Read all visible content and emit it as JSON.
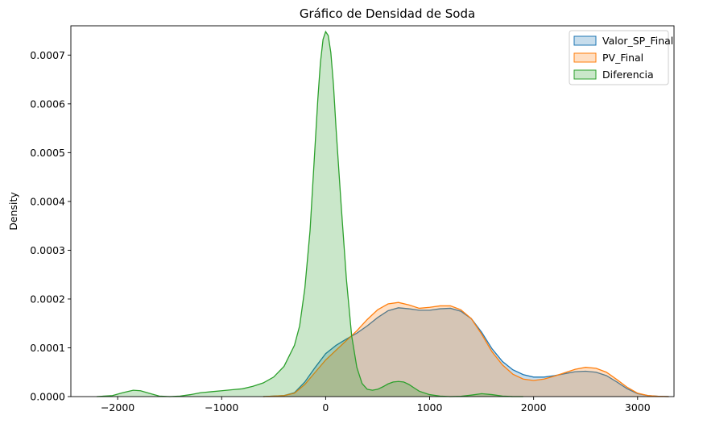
{
  "chart_data": {
    "type": "area",
    "title": "Gráfico de Densidad de Soda",
    "xlabel": "",
    "ylabel": "Density",
    "xlim": [
      -2450,
      3350
    ],
    "ylim": [
      0,
      0.00076
    ],
    "grid": false,
    "legend_position": "top-right",
    "xticks": [
      -2000,
      -1000,
      0,
      1000,
      2000,
      3000
    ],
    "xtick_labels": [
      "−2000",
      "−1000",
      "0",
      "1000",
      "2000",
      "3000"
    ],
    "yticks": [
      0,
      0.0001,
      0.0002,
      0.0003,
      0.0004,
      0.0005,
      0.0006,
      0.0007
    ],
    "ytick_labels": [
      "0.0000",
      "0.0001",
      "0.0002",
      "0.0003",
      "0.0004",
      "0.0005",
      "0.0006",
      "0.0007"
    ],
    "series": [
      {
        "name": "Valor_SP_Final",
        "color": "#1f77b4",
        "x": [
          -600,
          -400,
          -300,
          -200,
          -100,
          0,
          100,
          200,
          300,
          400,
          500,
          600,
          700,
          800,
          900,
          1000,
          1100,
          1200,
          1300,
          1400,
          1500,
          1600,
          1700,
          1800,
          1900,
          2000,
          2100,
          2200,
          2300,
          2400,
          2500,
          2600,
          2700,
          2800,
          2900,
          3000,
          3100,
          3200,
          3300
        ],
        "y": [
          0,
          2e-06,
          8e-06,
          3e-05,
          6e-05,
          8.8e-05,
          0.000105,
          0.000118,
          0.00013,
          0.000145,
          0.000162,
          0.000176,
          0.000182,
          0.00018,
          0.000177,
          0.000177,
          0.00018,
          0.000181,
          0.000175,
          0.00016,
          0.000132,
          9.8e-05,
          7.2e-05,
          5.5e-05,
          4.5e-05,
          4e-05,
          4e-05,
          4.3e-05,
          4.7e-05,
          5.1e-05,
          5.2e-05,
          5e-05,
          4.3e-05,
          3e-05,
          1.6e-05,
          6e-06,
          2e-06,
          5e-07,
          0
        ]
      },
      {
        "name": "PV_Final",
        "color": "#ff7f0e",
        "x": [
          -600,
          -400,
          -300,
          -200,
          -100,
          0,
          100,
          200,
          300,
          400,
          500,
          600,
          700,
          800,
          900,
          1000,
          1100,
          1200,
          1300,
          1400,
          1500,
          1600,
          1700,
          1800,
          1900,
          2000,
          2100,
          2200,
          2300,
          2400,
          2500,
          2600,
          2700,
          2800,
          2900,
          3000,
          3100,
          3200,
          3300
        ],
        "y": [
          0,
          2e-06,
          7e-06,
          2.5e-05,
          5e-05,
          7.5e-05,
          9.5e-05,
          0.000115,
          0.000135,
          0.000158,
          0.000178,
          0.00019,
          0.000193,
          0.000188,
          0.000181,
          0.000183,
          0.000186,
          0.000186,
          0.000178,
          0.00016,
          0.000128,
          9.2e-05,
          6.5e-05,
          4.6e-05,
          3.6e-05,
          3.3e-05,
          3.6e-05,
          4.2e-05,
          4.9e-05,
          5.6e-05,
          6e-05,
          5.8e-05,
          5e-05,
          3.5e-05,
          1.9e-05,
          7e-06,
          2e-06,
          5e-07,
          0
        ]
      },
      {
        "name": "Diferencia",
        "color": "#2ca02c",
        "x": [
          -2200,
          -2050,
          -1950,
          -1850,
          -1780,
          -1700,
          -1600,
          -1500,
          -1400,
          -1300,
          -1200,
          -1100,
          -1000,
          -900,
          -800,
          -700,
          -600,
          -500,
          -400,
          -300,
          -250,
          -200,
          -150,
          -100,
          -75,
          -50,
          -25,
          0,
          25,
          50,
          75,
          100,
          150,
          200,
          250,
          300,
          350,
          400,
          450,
          500,
          550,
          600,
          650,
          700,
          750,
          800,
          850,
          900,
          1000,
          1100,
          1200,
          1300,
          1400,
          1500,
          1600,
          1700,
          1800,
          1900
        ],
        "y": [
          0,
          2e-06,
          8e-06,
          1.3e-05,
          1.2e-05,
          7e-06,
          1e-06,
          0,
          1e-06,
          4e-06,
          8e-06,
          1e-05,
          1.2e-05,
          1.4e-05,
          1.6e-05,
          2.1e-05,
          2.8e-05,
          4e-05,
          6.2e-05,
          0.000105,
          0.000145,
          0.000222,
          0.00034,
          0.00052,
          0.00061,
          0.000685,
          0.000732,
          0.000748,
          0.00074,
          0.000705,
          0.00064,
          0.00055,
          0.00039,
          0.00024,
          0.000125,
          6e-05,
          2.7e-05,
          1.5e-05,
          1.3e-05,
          1.5e-05,
          2e-05,
          2.6e-05,
          3e-05,
          3.1e-05,
          3e-05,
          2.5e-05,
          1.8e-05,
          1.1e-05,
          4e-06,
          1e-06,
          0,
          5e-07,
          3e-06,
          6e-06,
          4e-06,
          1e-06,
          0,
          0
        ]
      }
    ]
  }
}
